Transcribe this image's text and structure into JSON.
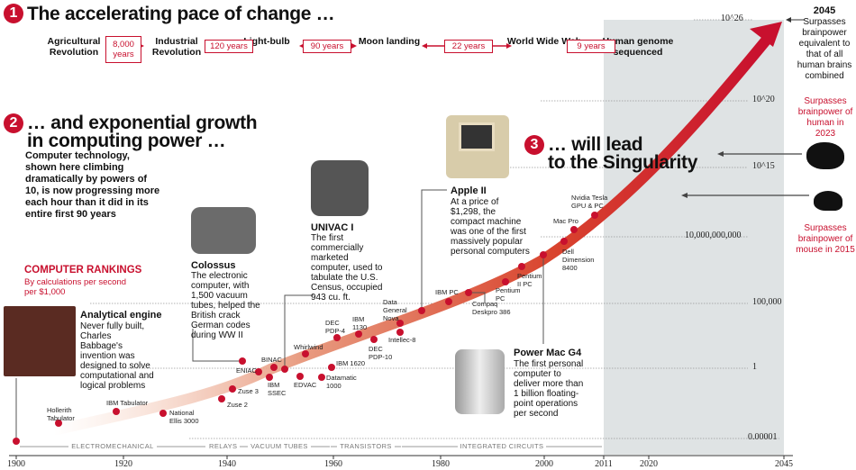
{
  "section1": {
    "number": "1",
    "title": "The accelerating pace of change …",
    "events": [
      "Agricultural Revolution",
      "Industrial Revolution",
      "Light-bulb",
      "Moon landing",
      "World Wide Web",
      "Human genome sequenced"
    ],
    "gaps": [
      "8,000 years",
      "120 years",
      "90 years",
      "22 years",
      "9 years"
    ]
  },
  "section2": {
    "number": "2",
    "title_line1": "… and exponential growth",
    "title_line2": "in computing power …",
    "body": "Computer technology, shown here climbing dramatically by powers of 10, is now progressing more each hour than it did in its entire first 90 years"
  },
  "section3": {
    "number": "3",
    "title_line1": "… will lead",
    "title_line2": "to the Singularity"
  },
  "rankings": {
    "title": "COMPUTER RANKINGS",
    "subtitle": "By calculations per second per $1,000"
  },
  "callouts": {
    "analytical": {
      "title": "Analytical engine",
      "body": "Never fully built, Charles Babbage's invention was designed to solve computational and logical problems"
    },
    "colossus": {
      "title": "Colossus",
      "body": "The electronic computer, with 1,500 vacuum tubes, helped the British crack German codes during WW II"
    },
    "univac": {
      "title": "UNIVAC I",
      "body": "The first commercially marketed computer, used to tabulate the U.S. Census, occupied 943 cu. ft."
    },
    "apple": {
      "title": "Apple II",
      "body": "At a price of $1,298, the compact machine was one of the first massively popular personal computers"
    },
    "powermac": {
      "title": "Power Mac G4",
      "body": "The first personal computer to deliver more than 1 billion floating-point operations per second"
    }
  },
  "milestones": {
    "y2045": {
      "year": "2045",
      "body": "Surpasses brainpower equivalent to that of all human brains combined"
    },
    "human": "Surpasses brainpower of human in 2023",
    "mouse": "Surpasses brainpower of mouse in 2015"
  },
  "points": [
    "Hollerith Tabulator",
    "IBM Tabulator",
    "National Ellis 3000",
    "Zuse 2",
    "Zuse 3",
    "ENIAC",
    "BINAC",
    "IBM SSEC",
    "EDVAC",
    "Whirlwind",
    "Datamatic 1000",
    "IBM 1620",
    "DEC PDP-4",
    "IBM 1130",
    "DEC PDP-10",
    "Data General Nova",
    "Intellec-8",
    "IBM PC",
    "Compaq Deskpro 386",
    "Pentium PC",
    "Pentium II PC",
    "Dell Dimension 8400",
    "Mac Pro",
    "Nvidia Tesla GPU & PC"
  ],
  "y_ticks": [
    "0.00001",
    "1",
    "100,000",
    "10,000,000,000",
    "10^15",
    "10^20",
    "10^26"
  ],
  "x_ticks": [
    "1900",
    "1920",
    "1940",
    "1960",
    "1980",
    "2000",
    "2011",
    "2020",
    "2045"
  ],
  "eras": [
    "ELECTROMECHANICAL",
    "RELAYS",
    "VACUUM TUBES",
    "TRANSISTORS",
    "INTEGRATED CIRCUITS"
  ],
  "colors": {
    "accent": "#c8102e",
    "future_shade": "#dfe3e4"
  }
}
